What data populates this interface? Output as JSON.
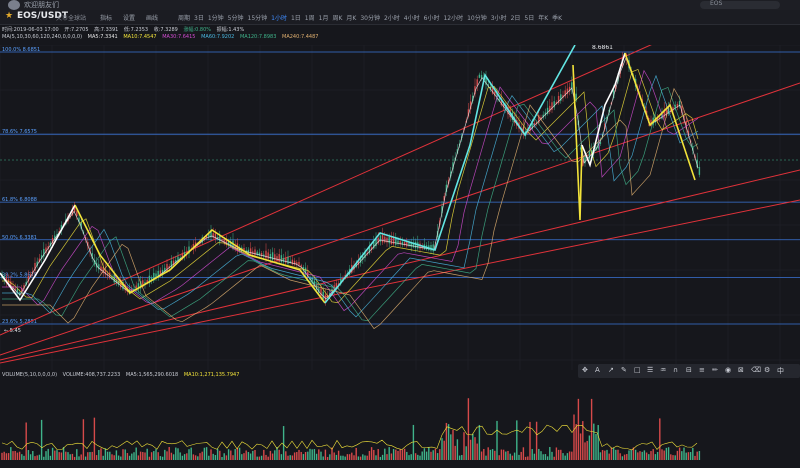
{
  "user": {
    "name": "欢迎朋友们"
  },
  "search": {
    "placeholder": "EOS"
  },
  "toolbar": {
    "symbol": "EOS/USDT",
    "market": "火币全球站",
    "indicators_label": "指标",
    "settings_label": "设置",
    "draw_label": "画线",
    "periods_label": "周期",
    "periods": [
      "3日",
      "1分钟",
      "5分钟",
      "15分钟",
      "1小时",
      "1日",
      "1周",
      "1月",
      "周K",
      "月K",
      "30分钟",
      "2小时",
      "4小时",
      "6小时",
      "12小时",
      "10分钟",
      "3小时",
      "2日",
      "5日",
      "年K",
      "季K"
    ],
    "active_period": "1小时"
  },
  "ohlc": {
    "time": "时间:2019-06-03 17:00",
    "open": "开:7.2705",
    "high": "高:7.3391",
    "low": "低:7.2353",
    "close": "收:7.3289",
    "change": "涨幅:0.80%",
    "amplitude": "振幅:1.43%"
  },
  "ma": {
    "params": "MA(5,10,30,60,120,240,0,0,0,0)",
    "ma5": "MA5:7.3341",
    "ma10": "MA10:7.4547",
    "ma30": "MA30:7.6415",
    "ma60": "MA60:7.9202",
    "ma120": "MA120:7.8983",
    "ma240": "MA240:7.4487"
  },
  "volume": {
    "params": "VOLUME(5,10,0,0,0,0)",
    "volume": "VOLUME:408,737.2233",
    "ma5": "MA5:1,565,290.6018",
    "ma10": "MA10:1,271,135.7947"
  },
  "fib": [
    {
      "label": "100.0% 8.6851",
      "price": 8.6851
    },
    {
      "label": "78.6% 7.6575",
      "price": 7.6575
    },
    {
      "label": "61.8% 6.8088",
      "price": 6.8088
    },
    {
      "label": "50.0% 6.3381",
      "price": 6.3381
    },
    {
      "label": "38.2% 5.8675",
      "price": 5.8675
    },
    {
      "label": "23.6% 5.2851",
      "price": 5.2851
    }
  ],
  "annotations": {
    "peak": "8.6861",
    "low": "← 5.45"
  },
  "colors": {
    "fib": "#3a74d6",
    "trend": "#e0323a",
    "wave_yellow": "#f2e33a",
    "wave_cyan": "#63e6e3",
    "wave_white": "#ffffff",
    "up": "#3fb38a",
    "down": "#d64a4a"
  },
  "drawtools": [
    "crosshair-icon",
    "text-icon",
    "line-icon",
    "pen-icon",
    "rect-icon",
    "list-icon",
    "brush-icon",
    "magnet-icon",
    "measure-icon",
    "fib-icon",
    "pencil-icon",
    "eye-icon",
    "lock-icon",
    "trash-icon",
    "settings-icon",
    "lang-icon"
  ]
}
